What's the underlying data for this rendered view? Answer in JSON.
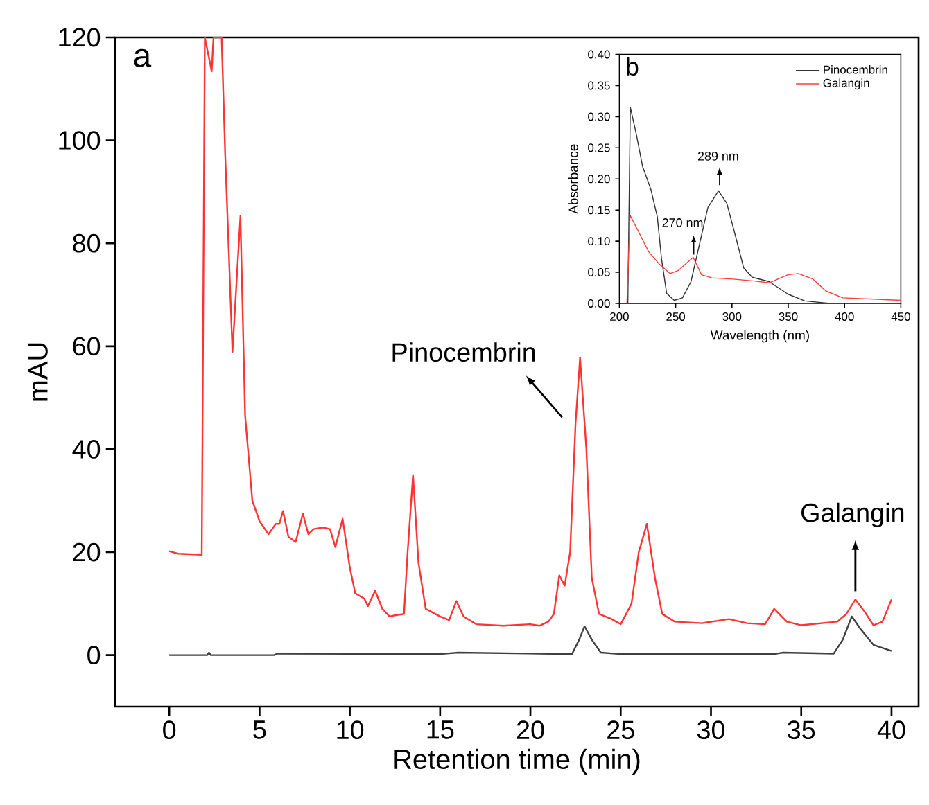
{
  "chart_data": [
    {
      "type": "line",
      "title": "a",
      "xlabel": "Retention time (min)",
      "ylabel": "mAU",
      "xlim": [
        -3,
        41.5
      ],
      "ylim": [
        -10,
        120
      ],
      "xticks": [
        0,
        5,
        10,
        15,
        20,
        25,
        30,
        35,
        40
      ],
      "yticks": [
        0,
        20,
        40,
        60,
        80,
        100,
        120
      ],
      "series": [
        {
          "color": "#ff3333",
          "x": [
            0,
            0.5,
            1.8,
            1.97,
            2.35,
            2.45,
            2.9,
            3.1,
            3.5,
            3.94,
            4.2,
            4.6,
            5.0,
            5.5,
            5.9,
            6.1,
            6.3,
            6.6,
            7.0,
            7.4,
            7.7,
            8.0,
            8.5,
            8.9,
            9.2,
            9.6,
            10.0,
            10.3,
            10.8,
            11.0,
            11.4,
            11.8,
            12.2,
            12.6,
            13.0,
            13.2,
            13.5,
            13.8,
            14.2,
            15.0,
            15.5,
            15.9,
            16.3,
            17.0,
            18.5,
            20.0,
            20.5,
            21.0,
            21.3,
            21.6,
            21.9,
            22.2,
            22.5,
            22.75,
            23.1,
            23.4,
            23.8,
            24.5,
            25.0,
            25.6,
            26.0,
            26.45,
            26.9,
            27.3,
            28.0,
            29.5,
            31.0,
            32.0,
            33.0,
            33.5,
            34.2,
            35.0,
            37.0,
            37.5,
            38.0,
            38.5,
            39.0,
            39.5,
            40.0
          ],
          "values": [
            20.2,
            19.7,
            19.5,
            120,
            113.4,
            120,
            120,
            97,
            58.9,
            85.3,
            46.6,
            30,
            26,
            23.5,
            25.5,
            25.5,
            28,
            23,
            22,
            27.5,
            23.5,
            24.5,
            24.8,
            24.5,
            21,
            26.5,
            17,
            12,
            11,
            9.5,
            12.5,
            9,
            7.5,
            7.8,
            8,
            20,
            35,
            18,
            9,
            7.5,
            6.8,
            10.5,
            7.5,
            6,
            5.7,
            6,
            5.7,
            6.5,
            8,
            15.5,
            13.5,
            20,
            45,
            57.8,
            40,
            15,
            8,
            7,
            6,
            10,
            20,
            25.5,
            15,
            8,
            6.5,
            6.2,
            7,
            6.2,
            6,
            9,
            6.5,
            5.8,
            6.5,
            8,
            10.8,
            8.5,
            5.8,
            6.5,
            10.8
          ]
        },
        {
          "color": "#404040",
          "x": [
            0,
            2.1,
            2.2,
            2.3,
            5.8,
            6.0,
            15.0,
            16.0,
            22.3,
            22.7,
            23.0,
            23.4,
            23.9,
            25.0,
            33.5,
            34.0,
            36.8,
            37.3,
            37.8,
            38.3,
            39.0,
            40.0
          ],
          "values": [
            0,
            0,
            0.5,
            0,
            0,
            0.3,
            0.2,
            0.5,
            0.2,
            3,
            5.6,
            3,
            0.5,
            0.2,
            0.2,
            0.5,
            0.3,
            3,
            7.5,
            5,
            2,
            0.8
          ]
        }
      ],
      "annotations": [
        {
          "text": "Pinocembrin",
          "x": 22.75,
          "y": 57.8
        },
        {
          "text": "Galangin",
          "x": 38.0,
          "y": 10.8
        }
      ]
    },
    {
      "type": "line",
      "title": "b",
      "xlabel": "Wavelength (nm)",
      "ylabel": "Absorbance",
      "xlim": [
        200,
        450
      ],
      "ylim": [
        0,
        0.4
      ],
      "xticks": [
        200,
        250,
        300,
        350,
        400,
        450
      ],
      "yticks": [
        {
          "value": 0,
          "label": "0.00"
        },
        {
          "value": 0.05,
          "label": "0.05"
        },
        {
          "value": 0.1,
          "label": "0.10"
        },
        {
          "value": 0.15,
          "label": "0.15"
        },
        {
          "value": 0.2,
          "label": "0.20"
        },
        {
          "value": 0.25,
          "label": "0.25"
        },
        {
          "value": 0.3,
          "label": "0.30"
        },
        {
          "value": 0.35,
          "label": "0.35"
        },
        {
          "value": 0.4,
          "label": "0.40"
        }
      ],
      "legend": "top right",
      "series": [
        {
          "name": "Pinocembrin",
          "color": "#333333",
          "x": [
            207.5,
            209.7,
            215,
            220.6,
            228,
            233.7,
            237.4,
            242,
            248.7,
            256,
            263.6,
            271,
            278.6,
            288,
            295.4,
            303,
            310.4,
            318,
            333,
            349.7,
            364.7,
            387,
            450
          ],
          "values": [
            0,
            0.315,
            0.272,
            0.22,
            0.183,
            0.139,
            0.072,
            0.016,
            0.005,
            0.009,
            0.035,
            0.094,
            0.154,
            0.181,
            0.161,
            0.109,
            0.057,
            0.042,
            0.035,
            0.015,
            0.004,
            0,
            0
          ]
        },
        {
          "name": "Galangin",
          "color": "#ff3b3b",
          "x": [
            206.7,
            209.4,
            216.8,
            226,
            235.5,
            245,
            252.4,
            265.5,
            273,
            282.3,
            301,
            319.8,
            332.9,
            349.7,
            359,
            372,
            383.4,
            398.4,
            450
          ],
          "values": [
            0,
            0.142,
            0.116,
            0.083,
            0.063,
            0.048,
            0.053,
            0.074,
            0.046,
            0.041,
            0.039,
            0.036,
            0.033,
            0.046,
            0.048,
            0.039,
            0.02,
            0.009,
            0.005
          ]
        }
      ],
      "annotations": [
        {
          "text": "289 nm",
          "x": 289,
          "y": 0.181
        },
        {
          "text": "270 nm",
          "x": 266,
          "y": 0.074
        }
      ]
    }
  ]
}
